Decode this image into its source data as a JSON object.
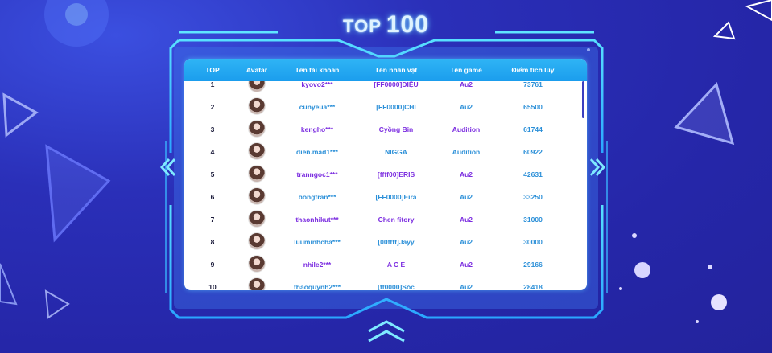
{
  "title": {
    "part1": "TOP",
    "part2": "100"
  },
  "table": {
    "headers": [
      "TOP",
      "Avatar",
      "Tên tài khoản",
      "Tên nhân vật",
      "Tên game",
      "Điểm tích lũy"
    ],
    "rows": [
      {
        "rank": "1",
        "account": "kyovo2***",
        "character": "[FF0000]DIỆU",
        "game": "Au2",
        "points": "73761"
      },
      {
        "rank": "2",
        "account": "cunyeua***",
        "character": "[FF0000]CHI",
        "game": "Au2",
        "points": "65500"
      },
      {
        "rank": "3",
        "account": "kengho***",
        "character": "Cyồng Bin",
        "game": "Audition",
        "points": "61744"
      },
      {
        "rank": "4",
        "account": "dien.mad1***",
        "character": "NIGGA",
        "game": "Audition",
        "points": "60922"
      },
      {
        "rank": "5",
        "account": "tranngoc1***",
        "character": "[ffff00]ERIS",
        "game": "Au2",
        "points": "42631"
      },
      {
        "rank": "6",
        "account": "bongtran***",
        "character": "[FF0000]Eira",
        "game": "Au2",
        "points": "33250"
      },
      {
        "rank": "7",
        "account": "thaonhikut***",
        "character": "Chen fitory",
        "game": "Au2",
        "points": "31000"
      },
      {
        "rank": "8",
        "account": "luuminhcha***",
        "character": "[00ffff]Jayy",
        "game": "Au2",
        "points": "30000"
      },
      {
        "rank": "9",
        "account": "nhile2***",
        "character": "A C E",
        "game": "Au2",
        "points": "29166"
      },
      {
        "rank": "10",
        "account": "thaoquynh2***",
        "character": "[ff0000]Sóc",
        "game": "Au2",
        "points": "28418"
      }
    ]
  },
  "colors": {
    "header": "#1b9ded",
    "purple": "#7b2ce0",
    "blue": "#2a8fd8",
    "background": "#2526a8"
  }
}
